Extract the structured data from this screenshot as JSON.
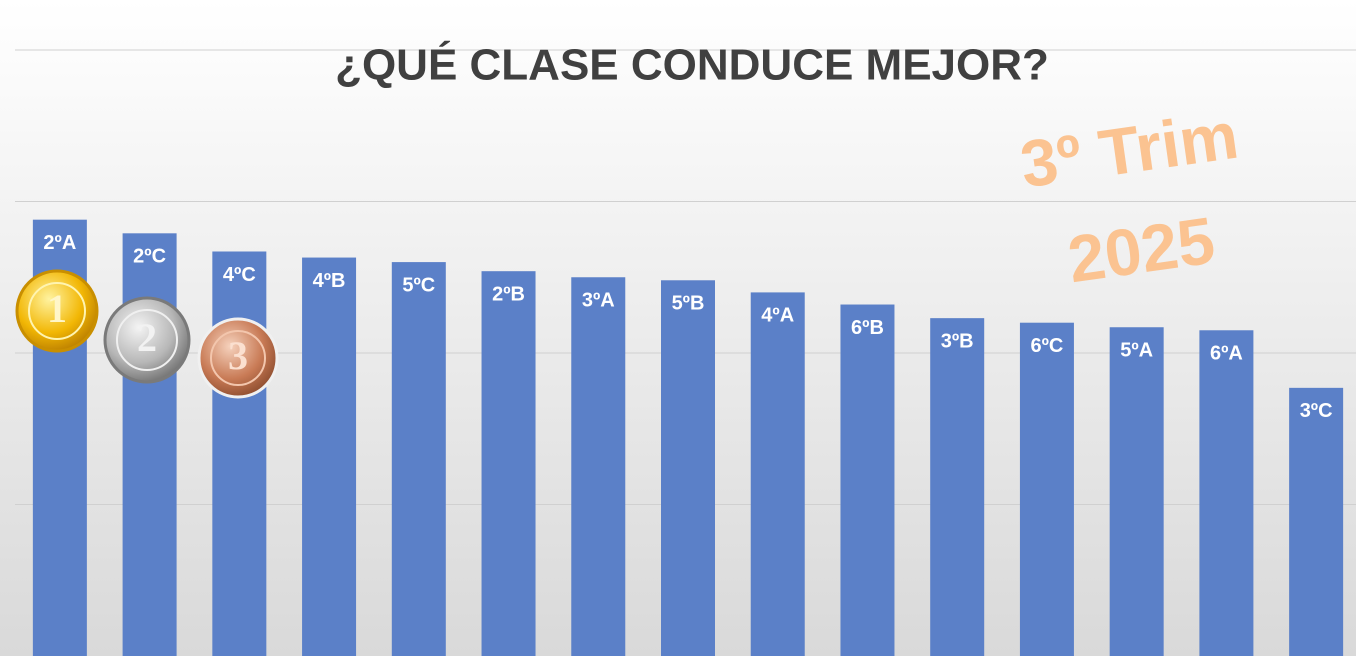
{
  "chart_data": {
    "type": "bar",
    "title": "¿QUÉ CLASE CONDUCE MEJOR?",
    "annotations": [
      "3º Trim",
      "2025"
    ],
    "medal_labels": [
      "1",
      "2",
      "3"
    ],
    "categories": [
      "2ºA",
      "2ºC",
      "4ºC",
      "4ºB",
      "5ºC",
      "2ºB",
      "3ºA",
      "5ºB",
      "4ºA",
      "6ºB",
      "3ºB",
      "6ºC",
      "5ºA",
      "6ºA",
      "3ºC"
    ],
    "values": [
      2.88,
      2.79,
      2.67,
      2.63,
      2.6,
      2.54,
      2.5,
      2.48,
      2.4,
      2.32,
      2.23,
      2.2,
      2.17,
      2.15,
      1.77
    ],
    "color": "#5b80c8",
    "ylim": [
      0,
      4.33
    ],
    "yticks": [
      1,
      2,
      3,
      4
    ],
    "grid": true
  }
}
